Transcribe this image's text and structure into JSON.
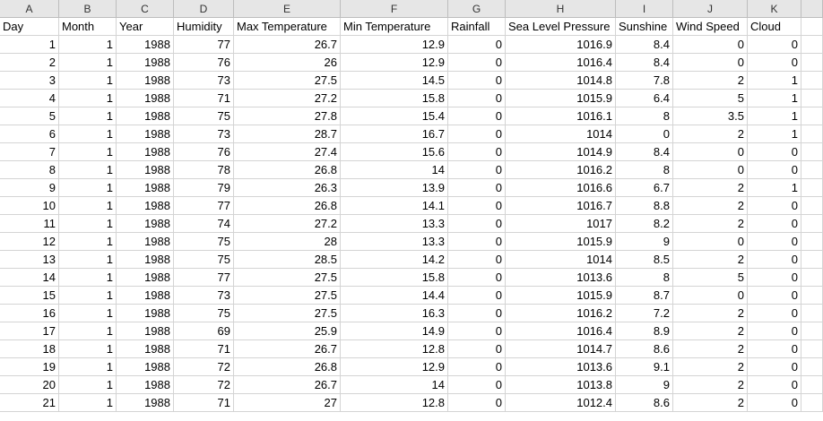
{
  "columns": [
    "A",
    "B",
    "C",
    "D",
    "E",
    "F",
    "G",
    "H",
    "I",
    "J",
    "K"
  ],
  "headers": [
    "Day",
    "Month",
    "Year",
    "Humidity",
    "Max Temperature",
    "Min Temperature",
    "Rainfall",
    "Sea Level Pressure",
    "Sunshine",
    "Wind Speed",
    "Cloud"
  ],
  "rows": [
    [
      "1",
      "1",
      "1988",
      "77",
      "26.7",
      "12.9",
      "0",
      "1016.9",
      "8.4",
      "0",
      "0"
    ],
    [
      "2",
      "1",
      "1988",
      "76",
      "26",
      "12.9",
      "0",
      "1016.4",
      "8.4",
      "0",
      "0"
    ],
    [
      "3",
      "1",
      "1988",
      "73",
      "27.5",
      "14.5",
      "0",
      "1014.8",
      "7.8",
      "2",
      "1"
    ],
    [
      "4",
      "1",
      "1988",
      "71",
      "27.2",
      "15.8",
      "0",
      "1015.9",
      "6.4",
      "5",
      "1"
    ],
    [
      "5",
      "1",
      "1988",
      "75",
      "27.8",
      "15.4",
      "0",
      "1016.1",
      "8",
      "3.5",
      "1"
    ],
    [
      "6",
      "1",
      "1988",
      "73",
      "28.7",
      "16.7",
      "0",
      "1014",
      "0",
      "2",
      "1"
    ],
    [
      "7",
      "1",
      "1988",
      "76",
      "27.4",
      "15.6",
      "0",
      "1014.9",
      "8.4",
      "0",
      "0"
    ],
    [
      "8",
      "1",
      "1988",
      "78",
      "26.8",
      "14",
      "0",
      "1016.2",
      "8",
      "0",
      "0"
    ],
    [
      "9",
      "1",
      "1988",
      "79",
      "26.3",
      "13.9",
      "0",
      "1016.6",
      "6.7",
      "2",
      "1"
    ],
    [
      "10",
      "1",
      "1988",
      "77",
      "26.8",
      "14.1",
      "0",
      "1016.7",
      "8.8",
      "2",
      "0"
    ],
    [
      "11",
      "1",
      "1988",
      "74",
      "27.2",
      "13.3",
      "0",
      "1017",
      "8.2",
      "2",
      "0"
    ],
    [
      "12",
      "1",
      "1988",
      "75",
      "28",
      "13.3",
      "0",
      "1015.9",
      "9",
      "0",
      "0"
    ],
    [
      "13",
      "1",
      "1988",
      "75",
      "28.5",
      "14.2",
      "0",
      "1014",
      "8.5",
      "2",
      "0"
    ],
    [
      "14",
      "1",
      "1988",
      "77",
      "27.5",
      "15.8",
      "0",
      "1013.6",
      "8",
      "5",
      "0"
    ],
    [
      "15",
      "1",
      "1988",
      "73",
      "27.5",
      "14.4",
      "0",
      "1015.9",
      "8.7",
      "0",
      "0"
    ],
    [
      "16",
      "1",
      "1988",
      "75",
      "27.5",
      "16.3",
      "0",
      "1016.2",
      "7.2",
      "2",
      "0"
    ],
    [
      "17",
      "1",
      "1988",
      "69",
      "25.9",
      "14.9",
      "0",
      "1016.4",
      "8.9",
      "2",
      "0"
    ],
    [
      "18",
      "1",
      "1988",
      "71",
      "26.7",
      "12.8",
      "0",
      "1014.7",
      "8.6",
      "2",
      "0"
    ],
    [
      "19",
      "1",
      "1988",
      "72",
      "26.8",
      "12.9",
      "0",
      "1013.6",
      "9.1",
      "2",
      "0"
    ],
    [
      "20",
      "1",
      "1988",
      "72",
      "26.7",
      "14",
      "0",
      "1013.8",
      "9",
      "2",
      "0"
    ],
    [
      "21",
      "1",
      "1988",
      "71",
      "27",
      "12.8",
      "0",
      "1012.4",
      "8.6",
      "2",
      "0"
    ]
  ]
}
